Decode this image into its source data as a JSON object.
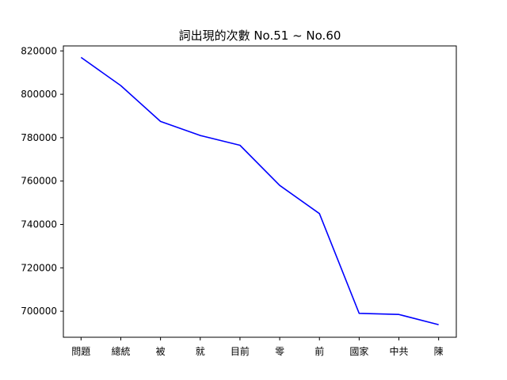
{
  "chart_data": {
    "type": "line",
    "title": "詞出現的次數 No.51 ~ No.60",
    "xlabel": "",
    "ylabel": "",
    "categories": [
      "問題",
      "總統",
      "被",
      "就",
      "目前",
      "零",
      "前",
      "國家",
      "中共",
      "陳"
    ],
    "series": [
      {
        "values": [
          817000,
          804000,
          787500,
          781000,
          776500,
          758000,
          745000,
          699000,
          698500,
          693800
        ],
        "color": "#0000ff"
      }
    ],
    "yticks": [
      700000,
      720000,
      740000,
      760000,
      780000,
      800000,
      820000
    ],
    "ytick_labels": [
      "700000",
      "720000",
      "740000",
      "760000",
      "780000",
      "800000",
      "820000"
    ],
    "ylim": [
      688000,
      822300
    ],
    "grid": false,
    "legend": "none"
  }
}
